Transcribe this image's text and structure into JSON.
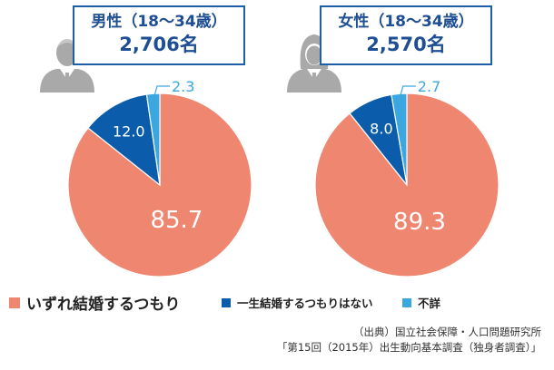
{
  "colors": {
    "will_marry": "#ef8670",
    "not_marry": "#0b5dab",
    "unknown": "#3aa7e0",
    "box_border": "#1f5fa8",
    "icon": "#a9a9a9",
    "leader": "#3aa7e0"
  },
  "groups": [
    {
      "title": "男性（18～34歳）",
      "count": "2,706名",
      "icon": "male-person-icon"
    },
    {
      "title": "女性（18～34歳）",
      "count": "2,570名",
      "icon": "female-person-icon"
    }
  ],
  "legend": [
    {
      "label": "いずれ結婚するつもり",
      "key": "will_marry"
    },
    {
      "label": "一生結婚するつもりはない",
      "key": "not_marry"
    },
    {
      "label": "不詳",
      "key": "unknown"
    }
  ],
  "source": {
    "line1": "（出典）国立社会保障・人口問題研究所",
    "line2": "「第15回（2015年）出生動向基本調査（独身者調査）」"
  },
  "chart_data": [
    {
      "type": "pie",
      "title": "",
      "categories": [
        "いずれ結婚するつもり",
        "一生結婚するつもりはない",
        "不詳"
      ],
      "values": [
        85.7,
        12.0,
        2.3
      ],
      "labels": [
        "85.7",
        "12.0",
        "2.3"
      ]
    },
    {
      "type": "pie",
      "title": "",
      "categories": [
        "いずれ結婚するつもり",
        "一生結婚するつもりはない",
        "不詳"
      ],
      "values": [
        89.3,
        8.0,
        2.7
      ],
      "labels": [
        "89.3",
        "8.0",
        "2.7"
      ]
    }
  ]
}
